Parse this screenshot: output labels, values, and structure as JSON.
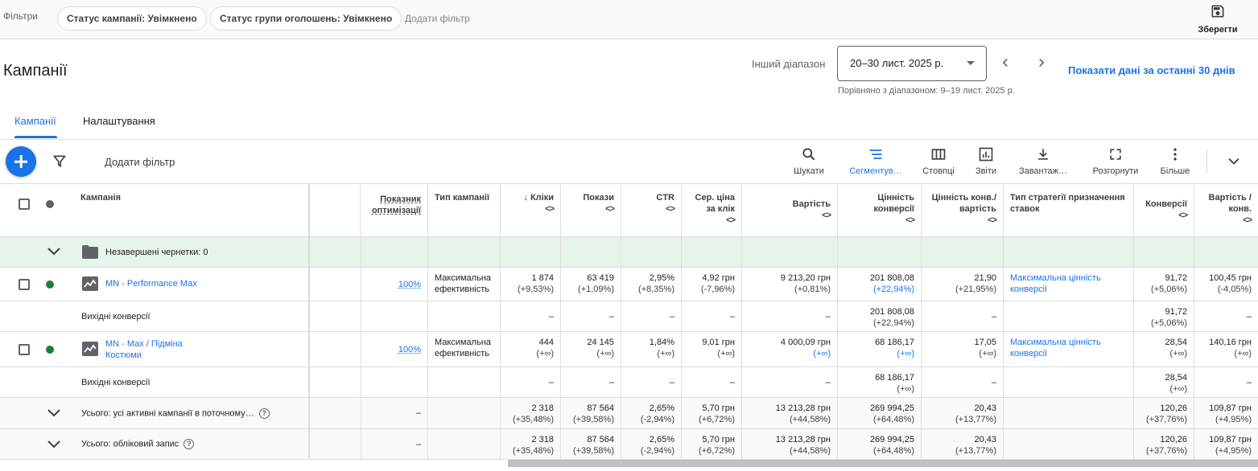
{
  "filters": {
    "label": "Фільтри",
    "chips": [
      "Статус кампанії: Увімкнено",
      "Статус групи оголошень: Увімкнено"
    ],
    "add_label": "Додати фільтр",
    "save_label": "Зберегти"
  },
  "header": {
    "title": "Кампанії",
    "range_label": "Інший діапазон",
    "date_range": "20–30 лист. 2025 р.",
    "compare_text": "Порівняно з діапазоном: 9–19 лист. 2025 р.",
    "show_last_30": "Показати дані за останні 30 днів"
  },
  "tabs": [
    "Кампанії",
    "Налаштування"
  ],
  "toolbar": {
    "add_filter": "Додати фільтр",
    "buttons": [
      "Шукати",
      "Сегментув…",
      "Стовпці",
      "Звіти",
      "Завантаж…",
      "Розгорнути",
      "Більше"
    ]
  },
  "table": {
    "headers": {
      "campaign": "Кампанія",
      "opt_score": "Показник оптимізації",
      "type": "Тип кампанії",
      "clicks": "Кліки",
      "impr": "Покази",
      "ctr": "CTR",
      "cpc": "Сер. ціна за клік",
      "cost": "Вартість",
      "conv_value": "Цінність конверсії",
      "conv_value_cost": "Цінність конв./ вартість",
      "bid_strategy": "Тип стратегії призначення ставок",
      "conversions": "Конверсії",
      "cost_conv": "Вартість / конв."
    },
    "drafts": "Незавершені чернетки: 0",
    "rows": [
      {
        "name": "MN - Performance Max",
        "opt": "100%",
        "type": "Максимальна ефективність",
        "clicks": "1 874",
        "clicks_d": "(+9,53%)",
        "impr": "63 419",
        "impr_d": "(+1,09%)",
        "ctr": "2,95%",
        "ctr_d": "(+8,35%)",
        "cpc": "4,92 грн",
        "cpc_d": "(-7,96%)",
        "cost": "9 213,20 грн",
        "cost_d": "(+0,81%)",
        "cv": "201 808,08",
        "cv_d": "(+22,94%)",
        "cvc": "21,90",
        "cvc_d": "(+21,95%)",
        "bid": "Максимальна цінність конверсії",
        "conv": "91,72",
        "conv_d": "(+5,06%)",
        "cpa": "100,45 грн",
        "cpa_d": "(-4,05%)"
      },
      {
        "name": "Вихідні конверсії",
        "dash": "–",
        "cv": "201 808,08",
        "cv_d": "(+22,94%)",
        "conv": "91,72",
        "conv_d": "(+5,06%)"
      },
      {
        "name": "MN - Max / Підміна Костюми",
        "opt": "100%",
        "type": "Максимальна ефективність",
        "clicks": "444",
        "clicks_d": "(+∞)",
        "impr": "24 145",
        "impr_d": "(+∞)",
        "ctr": "1,84%",
        "ctr_d": "(+∞)",
        "cpc": "9,01 грн",
        "cpc_d": "(+∞)",
        "cost": "4 000,09 грн",
        "cost_d": "(+∞)",
        "cv": "68 186,17",
        "cv_d": "(+∞)",
        "cvc": "17,05",
        "cvc_d": "(+∞)",
        "bid": "Максимальна цінність конверсії",
        "conv": "28,54",
        "conv_d": "(+∞)",
        "cpa": "140,16 грн",
        "cpa_d": "(+∞)"
      },
      {
        "name": "Вихідні конверсії",
        "dash": "–",
        "cv": "68 186,17",
        "cv_d": "(+∞)",
        "conv": "28,54",
        "conv_d": "(+∞)"
      }
    ],
    "totals": [
      {
        "name": "Усього: усі активні кампанії в поточному…",
        "dash": "–",
        "clicks": "2 318",
        "clicks_d": "(+35,48%)",
        "impr": "87 564",
        "impr_d": "(+39,58%)",
        "ctr": "2,65%",
        "ctr_d": "(-2,94%)",
        "cpc": "5,70 грн",
        "cpc_d": "(+6,72%)",
        "cost": "13 213,28 грн",
        "cost_d": "(+44,58%)",
        "cv": "269 994,25",
        "cv_d": "(+64,48%)",
        "cvc": "20,43",
        "cvc_d": "(+13,77%)",
        "conv": "120,26",
        "conv_d": "(+37,76%)",
        "cpa": "109,87 грн",
        "cpa_d": "(+4,95%)"
      },
      {
        "name": "Усього: обліковий запис",
        "dash": "–",
        "clicks": "2 318",
        "clicks_d": "(+35,48%)",
        "impr": "87 564",
        "impr_d": "(+39,58%)",
        "ctr": "2,65%",
        "ctr_d": "(-2,94%)",
        "cpc": "5,70 грн",
        "cpc_d": "(+6,72%)",
        "cost": "13 213,28 грн",
        "cost_d": "(+44,58%)",
        "cv": "269 994,25",
        "cv_d": "(+64,48%)",
        "cvc": "20,43",
        "cvc_d": "(+13,77%)",
        "conv": "120,26",
        "conv_d": "(+37,76%)",
        "cpa": "109,87 грн",
        "cpa_d": "(+4,95%)"
      }
    ]
  },
  "colors": {
    "accent": "#1a73e8",
    "status_green": "#188038",
    "draft_bg": "#e6f4ea"
  }
}
